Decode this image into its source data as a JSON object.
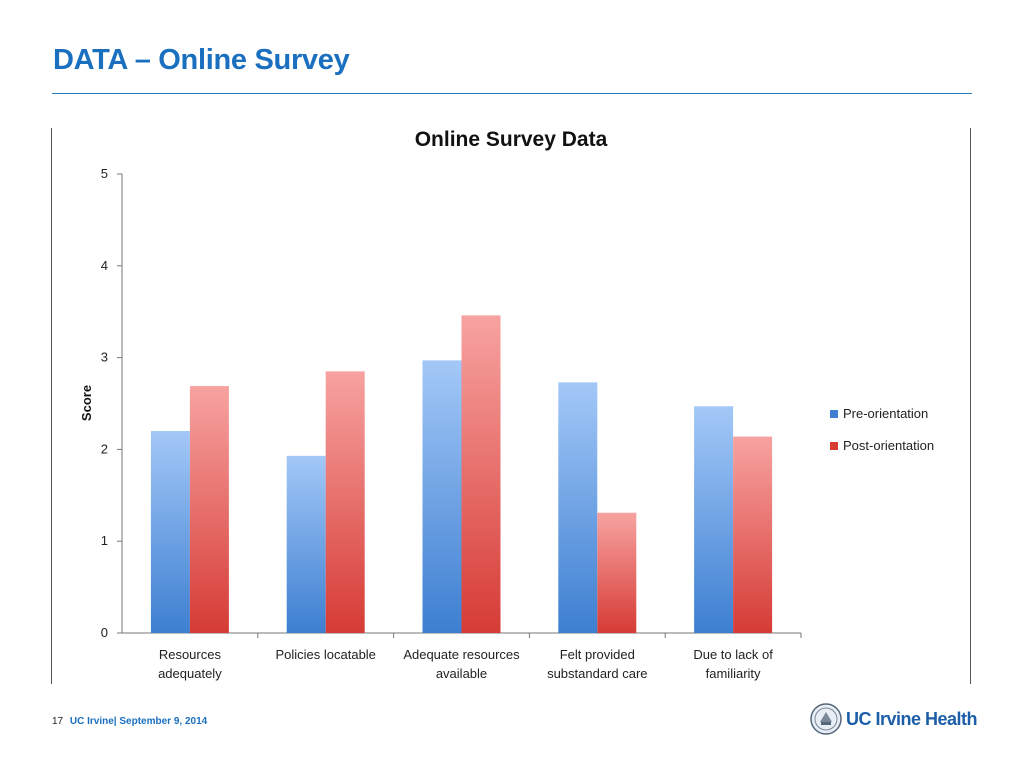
{
  "slide": {
    "title": "DATA – Online Survey",
    "footer": {
      "page_number": "17",
      "org": "UC Irvine|",
      "date": "September 9, 2014"
    },
    "logo_text": "UC Irvine Health"
  },
  "colors": {
    "title": "#1a6fbf",
    "pre_top": "#a3c8f7",
    "pre_bottom": "#3d7fd1",
    "post_top": "#f7a3a1",
    "post_bottom": "#d63b35"
  },
  "chart_data": {
    "type": "bar",
    "title": "Online Survey Data",
    "xlabel": "",
    "ylabel": "Score",
    "ylim": [
      0,
      5
    ],
    "yticks": [
      "0",
      "1",
      "2",
      "3",
      "4",
      "5"
    ],
    "grid": false,
    "legend_position": "right",
    "categories": [
      [
        "Resources",
        "adequately"
      ],
      [
        "Policies locatable"
      ],
      [
        "Adequate resources",
        "available"
      ],
      [
        "Felt provided",
        "substandard care"
      ],
      [
        "Due to lack of",
        "familiarity"
      ]
    ],
    "series": [
      {
        "name": "Pre-orientation",
        "values": [
          2.2,
          1.93,
          2.97,
          2.73,
          2.47
        ]
      },
      {
        "name": "Post-orientation",
        "values": [
          2.69,
          2.85,
          3.46,
          1.31,
          2.14
        ]
      }
    ]
  }
}
